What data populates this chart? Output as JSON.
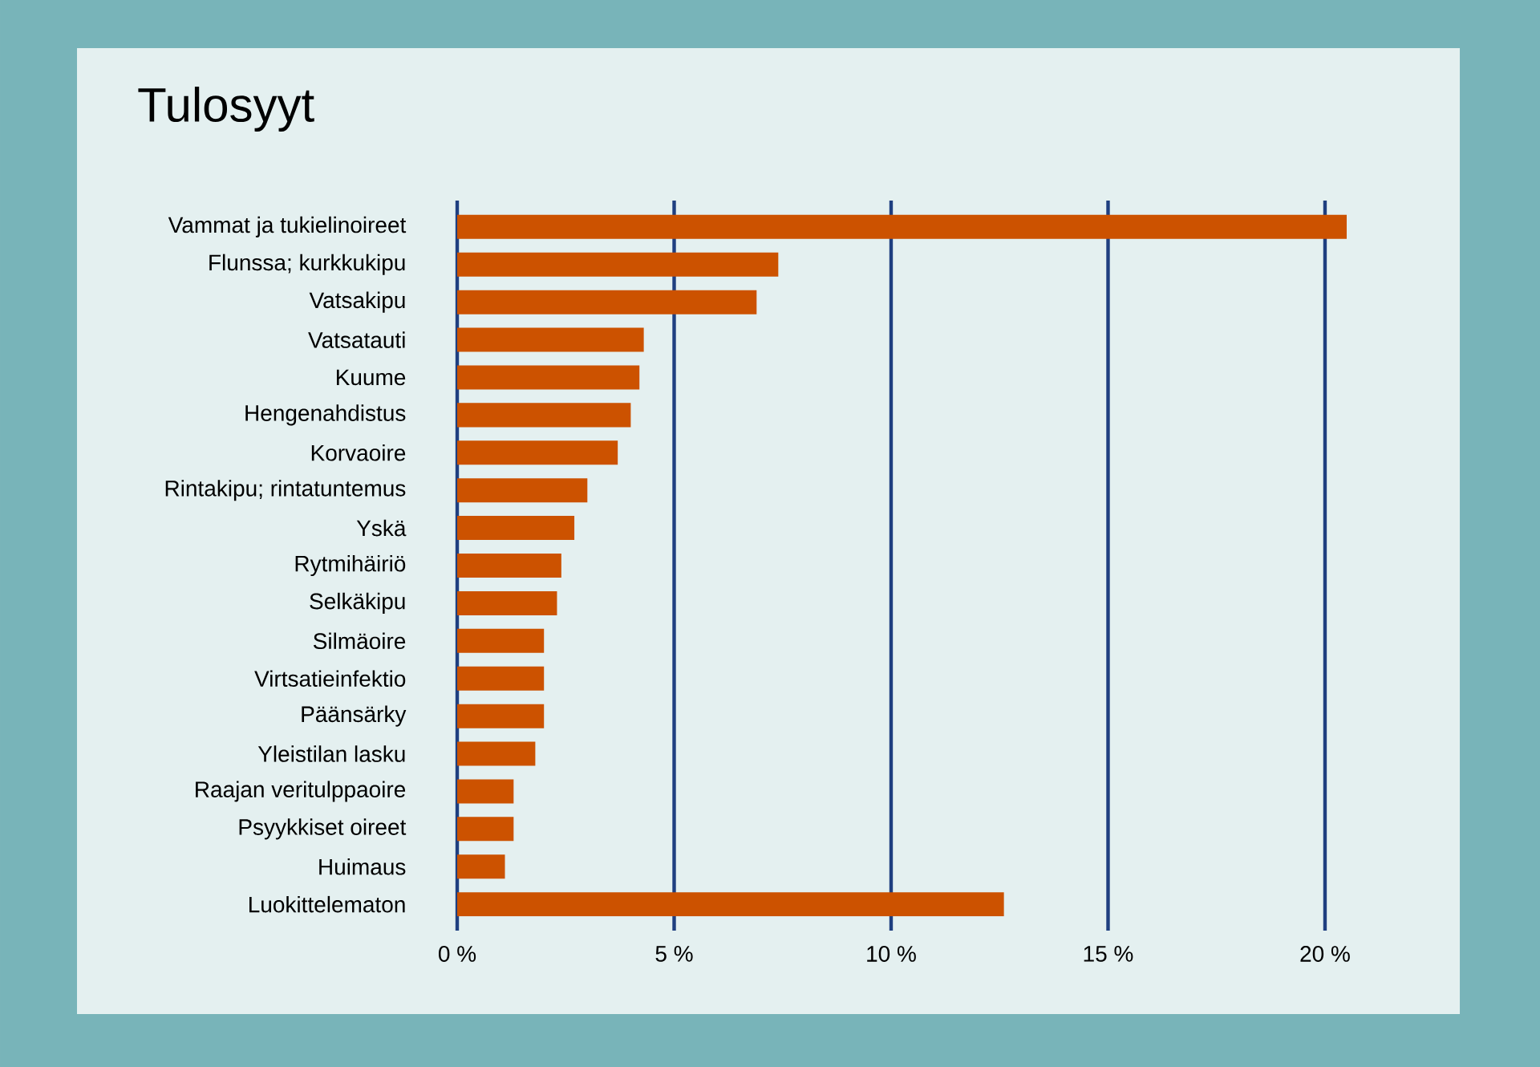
{
  "chart_data": {
    "type": "bar",
    "orientation": "horizontal",
    "title": "Tulosyyt",
    "categories": [
      "Vammat ja tukielinoireet",
      "Flunssa; kurkkukipu",
      "Vatsakipu",
      "Vatsatauti",
      "Kuume",
      "Hengenahdistus",
      "Korvaoire",
      "Rintakipu; rintatuntemus",
      "Yskä",
      "Rytmihäiriö",
      "Selkäkipu",
      "Silmäoire",
      "Virtsatieinfektio",
      "Päänsärky",
      "Yleistilan lasku",
      "Raajan veritulppaoire",
      "Psyykkiset oireet",
      "Huimaus",
      "Luokittelematon"
    ],
    "values": [
      20.5,
      7.4,
      6.9,
      4.3,
      4.2,
      4.0,
      3.7,
      3.0,
      2.7,
      2.4,
      2.3,
      2.0,
      2.0,
      2.0,
      1.8,
      1.3,
      1.3,
      1.1,
      12.6
    ],
    "color": "#cc5200",
    "xticks": [
      {
        "value": 0,
        "label": "0 %"
      },
      {
        "value": 5,
        "label": "5 %"
      },
      {
        "value": 10,
        "label": "10 %"
      },
      {
        "value": 15,
        "label": "15 %"
      },
      {
        "value": 20,
        "label": "20 %"
      }
    ],
    "xlim": [
      0,
      20.5
    ],
    "grid": "x"
  }
}
